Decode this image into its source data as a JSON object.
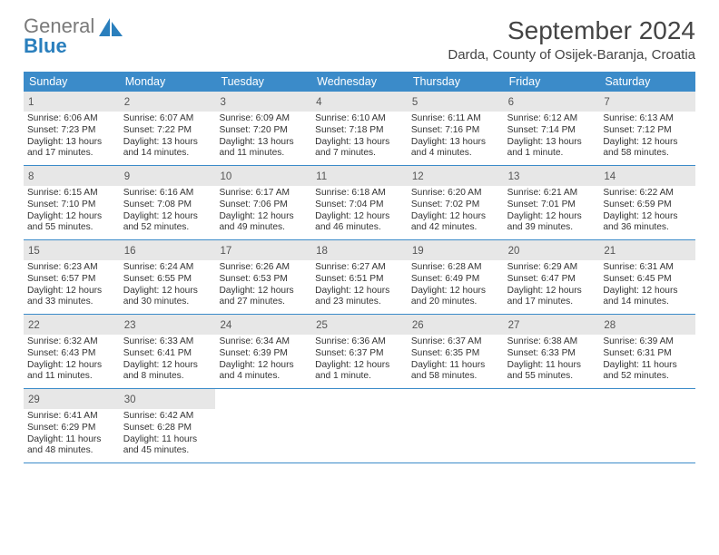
{
  "brand": {
    "part1": "General",
    "part2": "Blue"
  },
  "title": "September 2024",
  "location": "Darda, County of Osijek-Baranja, Croatia",
  "colors": {
    "header_bg": "#3b8bc9",
    "header_text": "#ffffff",
    "daynum_bg": "#e7e7e7",
    "week_border": "#3b8bc9",
    "body_text": "#333333",
    "logo_gray": "#7a7a7a",
    "logo_blue": "#2a7fbd",
    "page_bg": "#ffffff"
  },
  "typography": {
    "month_title_fontsize": 28,
    "location_fontsize": 15,
    "weekday_fontsize": 12.5,
    "daynum_fontsize": 11.5,
    "cell_fontsize": 10.2
  },
  "weekdays": [
    "Sunday",
    "Monday",
    "Tuesday",
    "Wednesday",
    "Thursday",
    "Friday",
    "Saturday"
  ],
  "weeks": [
    [
      {
        "day": "1",
        "sunrise": "Sunrise: 6:06 AM",
        "sunset": "Sunset: 7:23 PM",
        "d1": "Daylight: 13 hours",
        "d2": "and 17 minutes."
      },
      {
        "day": "2",
        "sunrise": "Sunrise: 6:07 AM",
        "sunset": "Sunset: 7:22 PM",
        "d1": "Daylight: 13 hours",
        "d2": "and 14 minutes."
      },
      {
        "day": "3",
        "sunrise": "Sunrise: 6:09 AM",
        "sunset": "Sunset: 7:20 PM",
        "d1": "Daylight: 13 hours",
        "d2": "and 11 minutes."
      },
      {
        "day": "4",
        "sunrise": "Sunrise: 6:10 AM",
        "sunset": "Sunset: 7:18 PM",
        "d1": "Daylight: 13 hours",
        "d2": "and 7 minutes."
      },
      {
        "day": "5",
        "sunrise": "Sunrise: 6:11 AM",
        "sunset": "Sunset: 7:16 PM",
        "d1": "Daylight: 13 hours",
        "d2": "and 4 minutes."
      },
      {
        "day": "6",
        "sunrise": "Sunrise: 6:12 AM",
        "sunset": "Sunset: 7:14 PM",
        "d1": "Daylight: 13 hours",
        "d2": "and 1 minute."
      },
      {
        "day": "7",
        "sunrise": "Sunrise: 6:13 AM",
        "sunset": "Sunset: 7:12 PM",
        "d1": "Daylight: 12 hours",
        "d2": "and 58 minutes."
      }
    ],
    [
      {
        "day": "8",
        "sunrise": "Sunrise: 6:15 AM",
        "sunset": "Sunset: 7:10 PM",
        "d1": "Daylight: 12 hours",
        "d2": "and 55 minutes."
      },
      {
        "day": "9",
        "sunrise": "Sunrise: 6:16 AM",
        "sunset": "Sunset: 7:08 PM",
        "d1": "Daylight: 12 hours",
        "d2": "and 52 minutes."
      },
      {
        "day": "10",
        "sunrise": "Sunrise: 6:17 AM",
        "sunset": "Sunset: 7:06 PM",
        "d1": "Daylight: 12 hours",
        "d2": "and 49 minutes."
      },
      {
        "day": "11",
        "sunrise": "Sunrise: 6:18 AM",
        "sunset": "Sunset: 7:04 PM",
        "d1": "Daylight: 12 hours",
        "d2": "and 46 minutes."
      },
      {
        "day": "12",
        "sunrise": "Sunrise: 6:20 AM",
        "sunset": "Sunset: 7:02 PM",
        "d1": "Daylight: 12 hours",
        "d2": "and 42 minutes."
      },
      {
        "day": "13",
        "sunrise": "Sunrise: 6:21 AM",
        "sunset": "Sunset: 7:01 PM",
        "d1": "Daylight: 12 hours",
        "d2": "and 39 minutes."
      },
      {
        "day": "14",
        "sunrise": "Sunrise: 6:22 AM",
        "sunset": "Sunset: 6:59 PM",
        "d1": "Daylight: 12 hours",
        "d2": "and 36 minutes."
      }
    ],
    [
      {
        "day": "15",
        "sunrise": "Sunrise: 6:23 AM",
        "sunset": "Sunset: 6:57 PM",
        "d1": "Daylight: 12 hours",
        "d2": "and 33 minutes."
      },
      {
        "day": "16",
        "sunrise": "Sunrise: 6:24 AM",
        "sunset": "Sunset: 6:55 PM",
        "d1": "Daylight: 12 hours",
        "d2": "and 30 minutes."
      },
      {
        "day": "17",
        "sunrise": "Sunrise: 6:26 AM",
        "sunset": "Sunset: 6:53 PM",
        "d1": "Daylight: 12 hours",
        "d2": "and 27 minutes."
      },
      {
        "day": "18",
        "sunrise": "Sunrise: 6:27 AM",
        "sunset": "Sunset: 6:51 PM",
        "d1": "Daylight: 12 hours",
        "d2": "and 23 minutes."
      },
      {
        "day": "19",
        "sunrise": "Sunrise: 6:28 AM",
        "sunset": "Sunset: 6:49 PM",
        "d1": "Daylight: 12 hours",
        "d2": "and 20 minutes."
      },
      {
        "day": "20",
        "sunrise": "Sunrise: 6:29 AM",
        "sunset": "Sunset: 6:47 PM",
        "d1": "Daylight: 12 hours",
        "d2": "and 17 minutes."
      },
      {
        "day": "21",
        "sunrise": "Sunrise: 6:31 AM",
        "sunset": "Sunset: 6:45 PM",
        "d1": "Daylight: 12 hours",
        "d2": "and 14 minutes."
      }
    ],
    [
      {
        "day": "22",
        "sunrise": "Sunrise: 6:32 AM",
        "sunset": "Sunset: 6:43 PM",
        "d1": "Daylight: 12 hours",
        "d2": "and 11 minutes."
      },
      {
        "day": "23",
        "sunrise": "Sunrise: 6:33 AM",
        "sunset": "Sunset: 6:41 PM",
        "d1": "Daylight: 12 hours",
        "d2": "and 8 minutes."
      },
      {
        "day": "24",
        "sunrise": "Sunrise: 6:34 AM",
        "sunset": "Sunset: 6:39 PM",
        "d1": "Daylight: 12 hours",
        "d2": "and 4 minutes."
      },
      {
        "day": "25",
        "sunrise": "Sunrise: 6:36 AM",
        "sunset": "Sunset: 6:37 PM",
        "d1": "Daylight: 12 hours",
        "d2": "and 1 minute."
      },
      {
        "day": "26",
        "sunrise": "Sunrise: 6:37 AM",
        "sunset": "Sunset: 6:35 PM",
        "d1": "Daylight: 11 hours",
        "d2": "and 58 minutes."
      },
      {
        "day": "27",
        "sunrise": "Sunrise: 6:38 AM",
        "sunset": "Sunset: 6:33 PM",
        "d1": "Daylight: 11 hours",
        "d2": "and 55 minutes."
      },
      {
        "day": "28",
        "sunrise": "Sunrise: 6:39 AM",
        "sunset": "Sunset: 6:31 PM",
        "d1": "Daylight: 11 hours",
        "d2": "and 52 minutes."
      }
    ],
    [
      {
        "day": "29",
        "sunrise": "Sunrise: 6:41 AM",
        "sunset": "Sunset: 6:29 PM",
        "d1": "Daylight: 11 hours",
        "d2": "and 48 minutes."
      },
      {
        "day": "30",
        "sunrise": "Sunrise: 6:42 AM",
        "sunset": "Sunset: 6:28 PM",
        "d1": "Daylight: 11 hours",
        "d2": "and 45 minutes."
      },
      null,
      null,
      null,
      null,
      null
    ]
  ]
}
